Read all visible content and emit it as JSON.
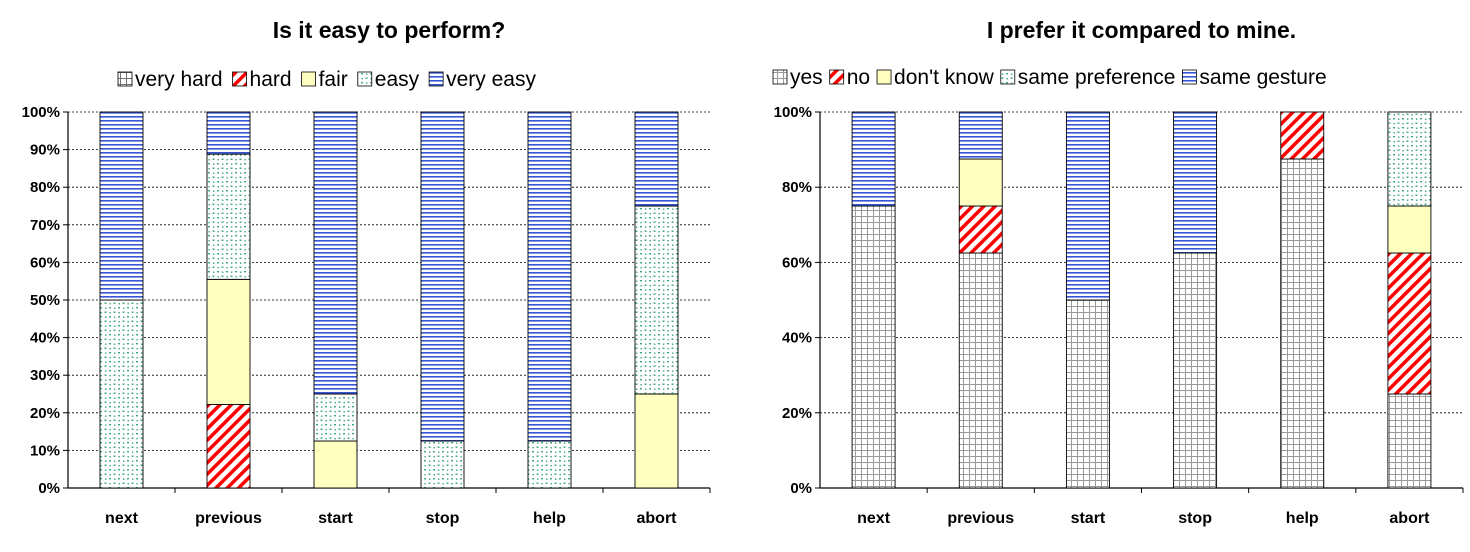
{
  "colors": {
    "very_hard": "#d8d8d8",
    "hard": "#ff0000",
    "fair": "#ffffc0",
    "easy": "#3aa57a",
    "very_easy": "#3555d6",
    "yes": "#9a9a9a",
    "no": "#ff0000",
    "dont_know": "#ffffc0",
    "same_preference": "#3aa57a",
    "same_gesture": "#3555d6"
  },
  "chart_data": [
    {
      "type": "bar",
      "stacked": true,
      "title": "Is it easy to perform?",
      "categories": [
        "next",
        "previous",
        "start",
        "stop",
        "help",
        "abort"
      ],
      "series": [
        {
          "name": "very hard",
          "pattern": "grid",
          "values": [
            0,
            0,
            0,
            0,
            0,
            0
          ]
        },
        {
          "name": "hard",
          "pattern": "diagonal",
          "values": [
            0,
            22.2,
            0,
            0,
            0,
            0
          ]
        },
        {
          "name": "fair",
          "pattern": "solid",
          "values": [
            0,
            33.3,
            12.5,
            0,
            0,
            25
          ]
        },
        {
          "name": "easy",
          "pattern": "dots",
          "values": [
            50,
            33.3,
            12.5,
            12.5,
            12.5,
            50
          ]
        },
        {
          "name": "very easy",
          "pattern": "hlines",
          "values": [
            50,
            11.2,
            75,
            87.5,
            87.5,
            25
          ]
        }
      ],
      "ylim": [
        0,
        100
      ],
      "yticks": [
        "0%",
        "10%",
        "20%",
        "30%",
        "40%",
        "50%",
        "60%",
        "70%",
        "80%",
        "90%",
        "100%"
      ],
      "legend_position": "top",
      "grid": "horizontal dashed"
    },
    {
      "type": "bar",
      "stacked": true,
      "title": "I prefer it compared to mine.",
      "categories": [
        "next",
        "previous",
        "start",
        "stop",
        "help",
        "abort"
      ],
      "series": [
        {
          "name": "yes",
          "pattern": "grid",
          "values": [
            75,
            62.5,
            50,
            62.5,
            87.5,
            25
          ]
        },
        {
          "name": "no",
          "pattern": "diagonal",
          "values": [
            0,
            12.5,
            0,
            0,
            12.5,
            37.5
          ]
        },
        {
          "name": "don't know",
          "pattern": "solid",
          "values": [
            0,
            12.5,
            0,
            0,
            0,
            12.5
          ]
        },
        {
          "name": "same preference",
          "pattern": "dots",
          "values": [
            0,
            0,
            0,
            0,
            0,
            25
          ]
        },
        {
          "name": "same gesture",
          "pattern": "hlines",
          "values": [
            25,
            12.5,
            50,
            37.5,
            0,
            0
          ]
        }
      ],
      "ylim": [
        0,
        100
      ],
      "yticks": [
        "0%",
        "20%",
        "40%",
        "60%",
        "80%",
        "100%"
      ],
      "legend_position": "top",
      "grid": "horizontal dashed"
    }
  ]
}
